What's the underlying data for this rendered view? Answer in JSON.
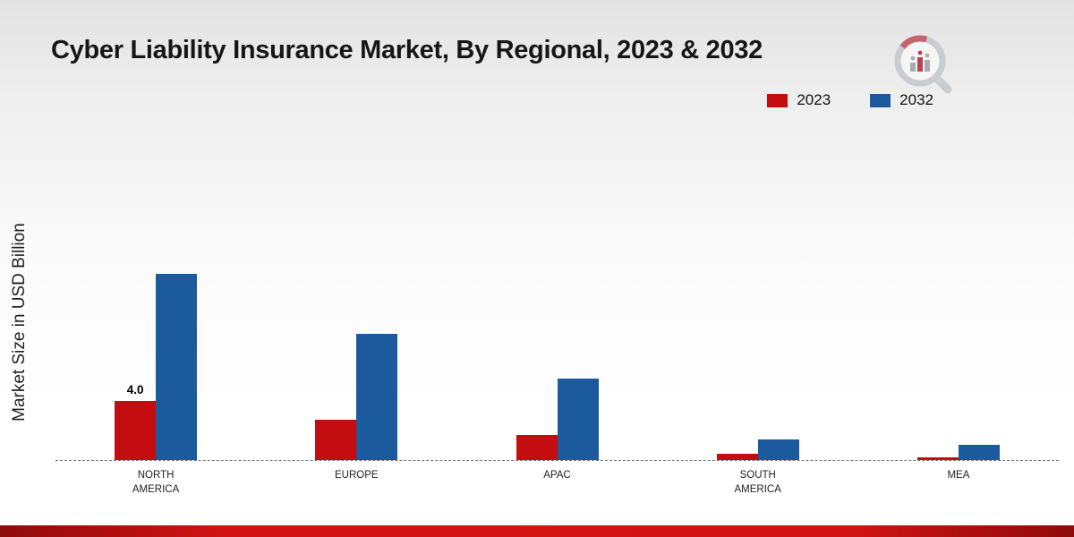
{
  "header": {
    "title": "Cyber Liability Insurance Market, By Regional, 2023 & 2032"
  },
  "chart_data": {
    "type": "bar",
    "title": "Cyber Liability Insurance Market, By Regional, 2023 & 2032",
    "ylabel": "Market Size in USD Billion",
    "xlabel": "",
    "categories": [
      "NORTH AMERICA",
      "EUROPE",
      "APAC",
      "SOUTH AMERICA",
      "MEA"
    ],
    "series": [
      {
        "name": "2023",
        "color": "#c40d11",
        "values": [
          4.0,
          2.7,
          1.7,
          0.45,
          0.2
        ],
        "labels": [
          "4.0",
          "",
          "",
          "",
          ""
        ]
      },
      {
        "name": "2032",
        "color": "#1b5a9c",
        "values": [
          12.5,
          8.5,
          5.5,
          1.4,
          1.0
        ],
        "labels": [
          "",
          "",
          "",
          "",
          ""
        ]
      }
    ],
    "ylim": [
      0,
      14
    ],
    "legend_position": "top-right",
    "legend_entries": [
      "2023",
      "2032"
    ],
    "baseline_style": "dashed",
    "grid": "off"
  },
  "branding": {
    "logo": "market-research-chart-logo",
    "bottom_band_color": "#c11212"
  }
}
